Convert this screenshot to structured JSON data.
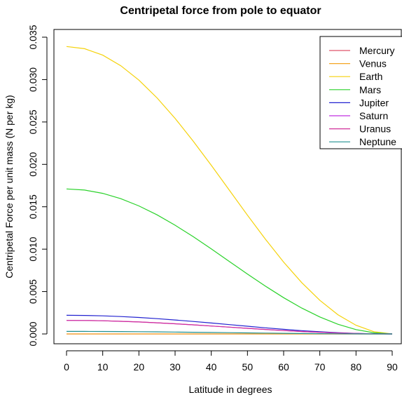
{
  "chart_data": {
    "type": "line",
    "title": "Centripetal force from pole to equator",
    "xlabel": "Latitude in degrees",
    "ylabel": "Centripetal Force per unit mass (N per kg)",
    "xlim": [
      0,
      90
    ],
    "ylim": [
      0,
      0.035
    ],
    "xticks": [
      "0",
      "10",
      "20",
      "30",
      "40",
      "50",
      "60",
      "70",
      "80",
      "90"
    ],
    "yticks": [
      "0.000",
      "0.005",
      "0.010",
      "0.015",
      "0.020",
      "0.025",
      "0.030",
      "0.035"
    ],
    "legend_position": "top-right",
    "grid": false,
    "series": [
      {
        "name": "Mercury",
        "color": "#DF536B",
        "max": 0.0
      },
      {
        "name": "Venus",
        "color": "#F5A623",
        "max": 0.0
      },
      {
        "name": "Earth",
        "color": "#F5D20A",
        "max": 0.0339
      },
      {
        "name": "Mars",
        "color": "#2AD22A",
        "max": 0.0171
      },
      {
        "name": "Jupiter",
        "color": "#2222D0",
        "max": 0.0022
      },
      {
        "name": "Saturn",
        "color": "#C030E0",
        "max": 0.0016
      },
      {
        "name": "Uranus",
        "color": "#D0309A",
        "max": 0.0016
      },
      {
        "name": "Neptune",
        "color": "#209090",
        "max": 0.0003
      }
    ],
    "x": [
      0,
      5,
      10,
      15,
      20,
      25,
      30,
      35,
      40,
      45,
      50,
      55,
      60,
      65,
      70,
      75,
      80,
      85,
      90
    ]
  }
}
